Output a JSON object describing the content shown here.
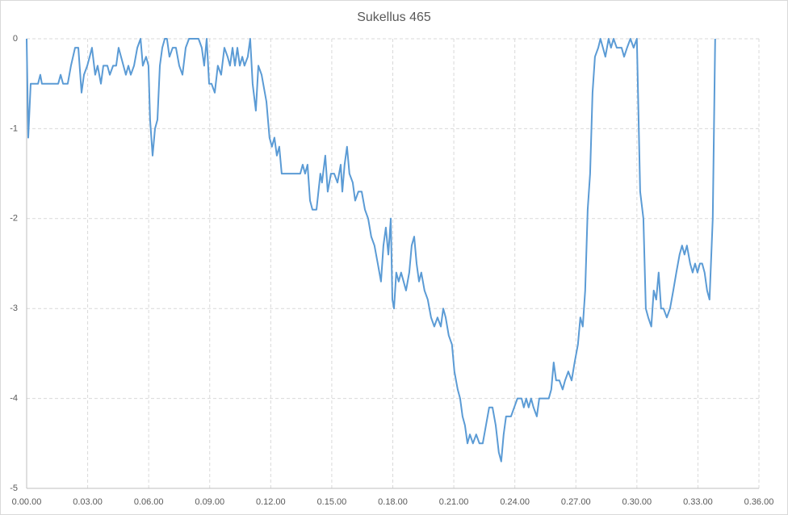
{
  "chart_data": {
    "type": "line",
    "title": "Sukellus 465",
    "color": "#5b9bd5",
    "grid": true,
    "x": [
      0,
      0.08,
      0.2,
      0.56,
      0.67,
      0.75,
      1.55,
      1.67,
      1.79,
      2.02,
      2.18,
      2.38,
      2.54,
      2.7,
      2.82,
      2.98,
      3.1,
      3.21,
      3.37,
      3.49,
      3.65,
      3.77,
      3.97,
      4.09,
      4.25,
      4.4,
      4.52,
      4.64,
      4.76,
      4.88,
      5.0,
      5.12,
      5.28,
      5.44,
      5.6,
      5.71,
      5.87,
      5.99,
      6.07,
      6.19,
      6.31,
      6.43,
      6.55,
      6.67,
      6.79,
      6.9,
      7.02,
      7.18,
      7.34,
      7.5,
      7.66,
      7.82,
      7.98,
      8.45,
      8.61,
      8.73,
      8.85,
      8.97,
      9.09,
      9.25,
      9.4,
      9.56,
      9.72,
      9.88,
      10.0,
      10.12,
      10.24,
      10.36,
      10.48,
      10.6,
      10.71,
      10.87,
      10.99,
      11.11,
      11.27,
      11.39,
      11.55,
      11.79,
      11.94,
      12.06,
      12.18,
      12.3,
      12.42,
      12.54,
      13.45,
      13.57,
      13.69,
      13.81,
      13.93,
      14.05,
      14.25,
      14.44,
      14.52,
      14.68,
      14.8,
      14.96,
      15.12,
      15.28,
      15.44,
      15.52,
      15.63,
      15.75,
      15.87,
      16.03,
      16.15,
      16.31,
      16.47,
      16.63,
      16.79,
      16.94,
      17.1,
      17.26,
      17.42,
      17.54,
      17.66,
      17.78,
      17.9,
      17.98,
      18.06,
      18.17,
      18.29,
      18.41,
      18.53,
      18.65,
      18.81,
      18.93,
      19.05,
      19.17,
      19.29,
      19.4,
      19.56,
      19.72,
      19.88,
      20.04,
      20.2,
      20.36,
      20.48,
      20.6,
      20.75,
      20.91,
      21.03,
      21.19,
      21.31,
      21.43,
      21.55,
      21.67,
      21.79,
      21.94,
      22.1,
      22.26,
      22.42,
      22.58,
      22.74,
      22.9,
      23.06,
      23.21,
      23.33,
      23.45,
      23.57,
      23.81,
      23.97,
      24.13,
      24.33,
      24.44,
      24.56,
      24.68,
      24.8,
      24.92,
      25.08,
      25.2,
      25.44,
      25.67,
      25.79,
      25.91,
      26.03,
      26.19,
      26.35,
      26.47,
      26.63,
      26.79,
      26.94,
      27.1,
      27.22,
      27.34,
      27.46,
      27.58,
      27.7,
      27.82,
      27.94,
      28.1,
      28.21,
      28.33,
      28.45,
      28.61,
      28.73,
      28.85,
      29.01,
      29.25,
      29.37,
      29.52,
      29.68,
      29.84,
      30.0,
      30.16,
      30.32,
      30.44,
      30.56,
      30.71,
      30.83,
      30.95,
      31.07,
      31.19,
      31.31,
      31.47,
      31.63,
      31.79,
      31.94,
      32.1,
      32.22,
      32.34,
      32.46,
      32.62,
      32.74,
      32.86,
      32.98,
      33.1,
      33.21,
      33.33,
      33.45,
      33.57,
      33.73,
      33.85
    ],
    "values": [
      0,
      -1.1,
      -0.5,
      -0.5,
      -0.4,
      -0.5,
      -0.5,
      -0.4,
      -0.5,
      -0.5,
      -0.3,
      -0.1,
      -0.1,
      -0.6,
      -0.4,
      -0.3,
      -0.2,
      -0.1,
      -0.4,
      -0.3,
      -0.5,
      -0.3,
      -0.3,
      -0.4,
      -0.3,
      -0.3,
      -0.1,
      -0.2,
      -0.3,
      -0.4,
      -0.3,
      -0.4,
      -0.3,
      -0.1,
      0,
      -0.3,
      -0.2,
      -0.3,
      -0.9,
      -1.3,
      -1.0,
      -0.9,
      -0.3,
      -0.1,
      0,
      0,
      -0.2,
      -0.1,
      -0.1,
      -0.3,
      -0.4,
      -0.1,
      0,
      0,
      -0.1,
      -0.3,
      0,
      -0.5,
      -0.5,
      -0.6,
      -0.3,
      -0.4,
      -0.1,
      -0.2,
      -0.3,
      -0.1,
      -0.3,
      -0.1,
      -0.3,
      -0.2,
      -0.3,
      -0.2,
      0,
      -0.5,
      -0.8,
      -0.3,
      -0.4,
      -0.7,
      -1.1,
      -1.2,
      -1.1,
      -1.3,
      -1.2,
      -1.5,
      -1.5,
      -1.4,
      -1.5,
      -1.4,
      -1.8,
      -1.9,
      -1.9,
      -1.5,
      -1.6,
      -1.3,
      -1.7,
      -1.5,
      -1.5,
      -1.6,
      -1.4,
      -1.7,
      -1.4,
      -1.2,
      -1.5,
      -1.6,
      -1.8,
      -1.7,
      -1.7,
      -1.9,
      -2.0,
      -2.2,
      -2.3,
      -2.5,
      -2.7,
      -2.3,
      -2.1,
      -2.4,
      -2.0,
      -2.9,
      -3.0,
      -2.6,
      -2.7,
      -2.6,
      -2.7,
      -2.8,
      -2.6,
      -2.3,
      -2.2,
      -2.5,
      -2.7,
      -2.6,
      -2.8,
      -2.9,
      -3.1,
      -3.2,
      -3.1,
      -3.2,
      -3.0,
      -3.1,
      -3.3,
      -3.4,
      -3.7,
      -3.9,
      -4.0,
      -4.2,
      -4.3,
      -4.5,
      -4.4,
      -4.5,
      -4.4,
      -4.5,
      -4.5,
      -4.3,
      -4.1,
      -4.1,
      -4.3,
      -4.6,
      -4.7,
      -4.4,
      -4.2,
      -4.2,
      -4.1,
      -4.0,
      -4.0,
      -4.1,
      -4.0,
      -4.1,
      -4.0,
      -4.1,
      -4.2,
      -4.0,
      -4.0,
      -4.0,
      -3.9,
      -3.6,
      -3.8,
      -3.8,
      -3.9,
      -3.8,
      -3.7,
      -3.8,
      -3.6,
      -3.4,
      -3.1,
      -3.2,
      -2.8,
      -1.9,
      -1.5,
      -0.6,
      -0.2,
      -0.1,
      0,
      -0.1,
      -0.2,
      0,
      -0.1,
      0,
      -0.1,
      -0.1,
      -0.2,
      -0.1,
      0,
      -0.1,
      0,
      -1.7,
      -2.0,
      -3.0,
      -3.1,
      -3.2,
      -2.8,
      -2.9,
      -2.6,
      -3.0,
      -3.0,
      -3.1,
      -3.0,
      -2.8,
      -2.6,
      -2.4,
      -2.3,
      -2.4,
      -2.3,
      -2.5,
      -2.6,
      -2.5,
      -2.6,
      -2.5,
      -2.5,
      -2.6,
      -2.8,
      -2.9,
      -2.0,
      0
    ],
    "xlim": [
      0,
      36
    ],
    "xticks": [
      {
        "value": 0,
        "label": "0.00.00"
      },
      {
        "value": 3,
        "label": "0.03.00"
      },
      {
        "value": 6,
        "label": "0.06.00"
      },
      {
        "value": 9,
        "label": "0.09.00"
      },
      {
        "value": 12,
        "label": "0.12.00"
      },
      {
        "value": 15,
        "label": "0.15.00"
      },
      {
        "value": 18,
        "label": "0.18.00"
      },
      {
        "value": 21,
        "label": "0.21.00"
      },
      {
        "value": 24,
        "label": "0.24.00"
      },
      {
        "value": 27,
        "label": "0.27.00"
      },
      {
        "value": 30,
        "label": "0.30.00"
      },
      {
        "value": 33,
        "label": "0.33.00"
      },
      {
        "value": 36,
        "label": "0.36.00"
      }
    ],
    "ylim": [
      -5,
      0
    ],
    "yticks": [
      0,
      -1,
      -2,
      -3,
      -4,
      -5
    ]
  }
}
